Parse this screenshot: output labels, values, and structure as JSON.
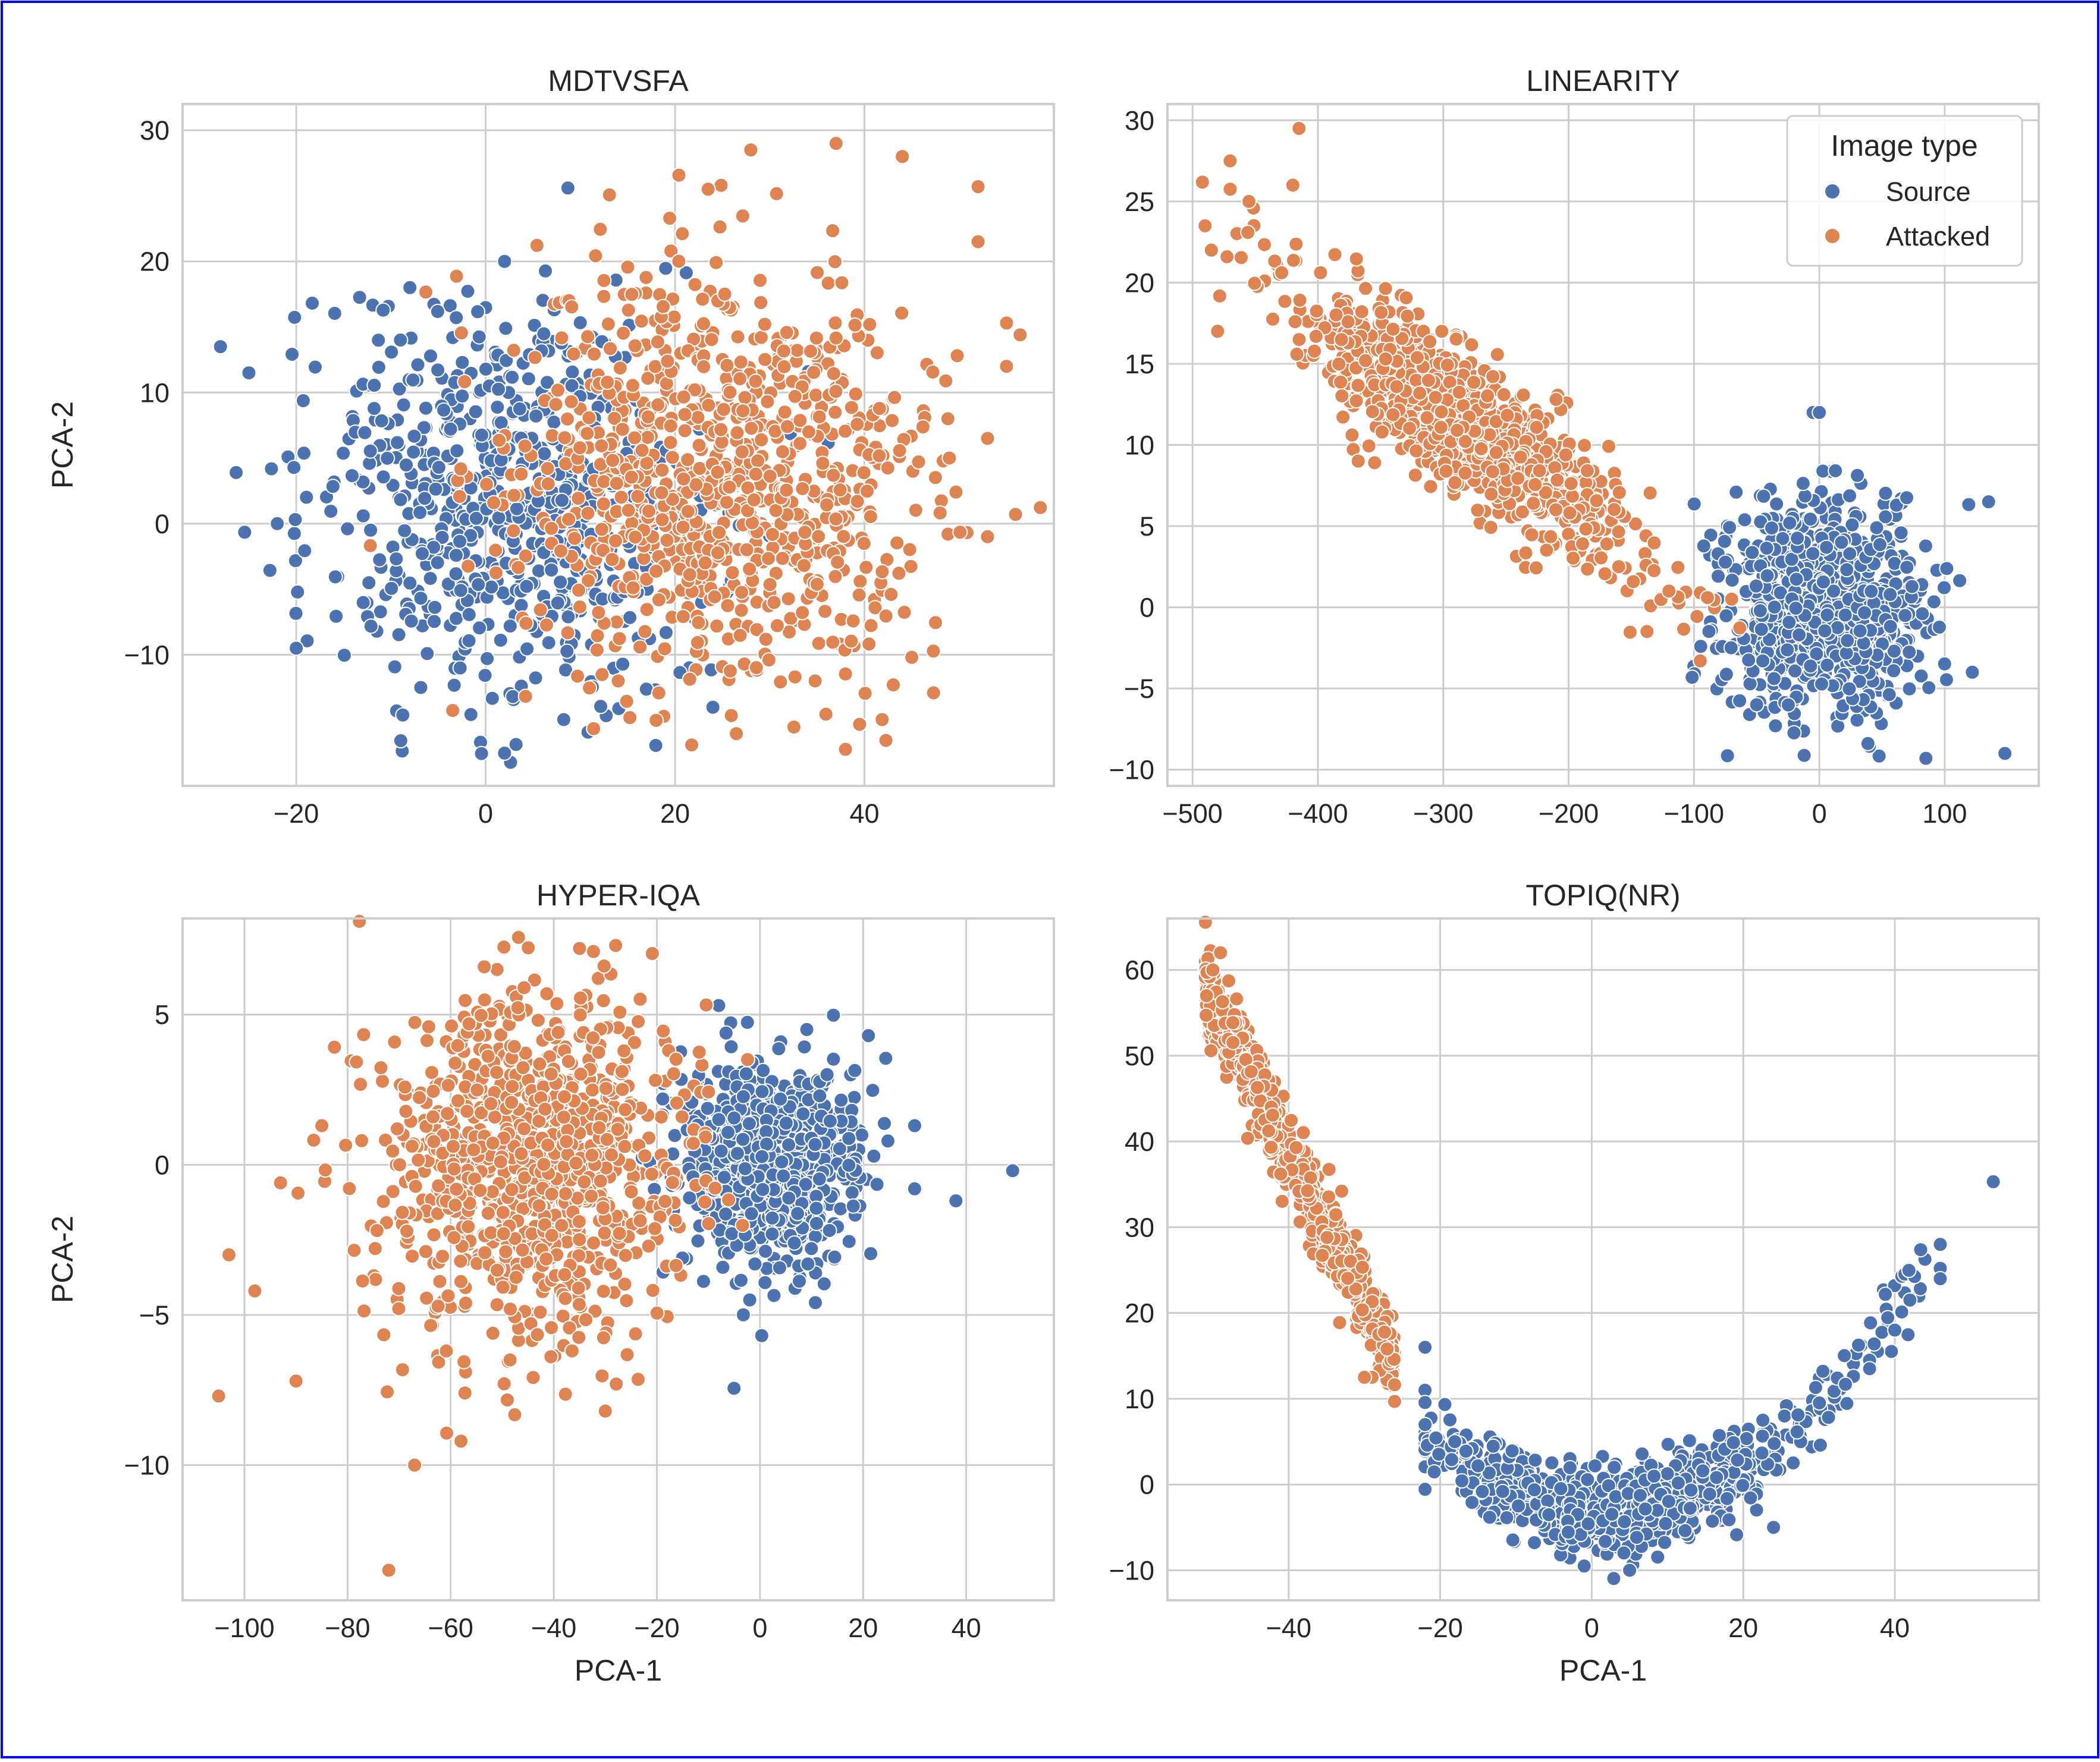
{
  "figure": {
    "xlabel": "PCA-1",
    "ylabel": "PCA-2"
  },
  "legend": {
    "title": "Image type",
    "entries": [
      {
        "label": "Source",
        "color": "#4c72b0"
      },
      {
        "label": "Attacked",
        "color": "#dd8452"
      }
    ],
    "placement": "top-right of LINEARITY panel"
  },
  "colors": {
    "source": "#4c72b0",
    "attacked": "#dd8452",
    "grid": "#cccccc",
    "frame": "#cccccc",
    "border": "#0000ff"
  },
  "chart_data": [
    {
      "type": "scatter",
      "title": "MDTVSFA",
      "xlabel": "",
      "ylabel": "PCA-2",
      "xlim": [
        -32,
        60
      ],
      "ylim": [
        -20,
        32
      ],
      "xticks": [
        -20,
        0,
        20,
        40
      ],
      "yticks": [
        -10,
        0,
        10,
        20,
        30
      ],
      "grid": true,
      "series": [
        {
          "name": "Source",
          "cluster": {
            "center": [
              2,
              2
            ],
            "spread": [
              10,
              7.5
            ],
            "count": 700,
            "angle": 0
          },
          "points": [
            [
              -28,
              13.5
            ],
            [
              -25,
              11.5
            ],
            [
              -22,
              0
            ],
            [
              -20,
              -9.5
            ],
            [
              2,
              20
            ],
            [
              2,
              -17.5
            ],
            [
              24,
              -14
            ],
            [
              -8,
              18
            ]
          ]
        },
        {
          "name": "Attacked",
          "cluster": {
            "center": [
              24,
              3.5
            ],
            "spread": [
              11,
              8
            ],
            "count": 900,
            "angle": 0
          },
          "points": [
            [
              28,
              28.5
            ],
            [
              37,
              29
            ],
            [
              44,
              28
            ],
            [
              52,
              25.7
            ],
            [
              52,
              21.5
            ],
            [
              55,
              15.3
            ],
            [
              55,
              12
            ],
            [
              53,
              6.5
            ],
            [
              53,
              -1
            ],
            [
              45,
              -10.2
            ],
            [
              18,
              -15
            ],
            [
              14,
              -12
            ]
          ]
        }
      ]
    },
    {
      "type": "scatter",
      "title": "LINEARITY",
      "xlabel": "",
      "ylabel": "",
      "xlim": [
        -520,
        175
      ],
      "ylim": [
        -11,
        31
      ],
      "xticks": [
        -500,
        -400,
        -300,
        -200,
        -100,
        0,
        100
      ],
      "yticks": [
        -10,
        -5,
        0,
        5,
        10,
        15,
        20,
        25,
        30
      ],
      "grid": true,
      "series": [
        {
          "name": "Source",
          "cluster": {
            "center": [
              0,
              0
            ],
            "spread": [
              40,
              3.2
            ],
            "count": 900,
            "angle": 0
          },
          "points": [
            [
              -5,
              12
            ],
            [
              135,
              6.5
            ],
            [
              122,
              -4
            ],
            [
              148,
              -9
            ],
            [
              85,
              -9.3
            ],
            [
              -35,
              -7.3
            ],
            [
              -50,
              -6
            ],
            [
              0,
              12
            ]
          ]
        },
        {
          "name": "Attacked",
          "cluster": {
            "center": [
              -280,
              11
            ],
            "spread": [
              70,
              2.4
            ],
            "count": 1000,
            "angle": 1
          },
          "points": [
            [
              -490,
              23.5
            ],
            [
              -485,
              22
            ],
            [
              -470,
              27.5
            ],
            [
              -455,
              25
            ],
            [
              -415,
              29.5
            ],
            [
              -420,
              26
            ],
            [
              -480,
              17
            ],
            [
              -160,
              2.5
            ],
            [
              -95,
              -3.3
            ],
            [
              -70,
              0.5
            ],
            [
              -120,
              1
            ]
          ]
        }
      ]
    },
    {
      "type": "scatter",
      "title": "HYPER-IQA",
      "xlabel": "PCA-1",
      "ylabel": "PCA-2",
      "xlim": [
        -112,
        57
      ],
      "ylim": [
        -14.5,
        8.2
      ],
      "xticks": [
        -100,
        -80,
        -60,
        -40,
        -20,
        0,
        20,
        40
      ],
      "yticks": [
        -10,
        -5,
        0,
        5
      ],
      "grid": true,
      "series": [
        {
          "name": "Source",
          "cluster": {
            "center": [
              2,
              0
            ],
            "spread": [
              8,
              1.6
            ],
            "count": 900,
            "angle": 0
          },
          "points": [
            [
              49,
              -0.2
            ],
            [
              38,
              -1.2
            ],
            [
              30,
              -0.8
            ],
            [
              30,
              1.3
            ],
            [
              -8,
              5.3
            ],
            [
              -2,
              -4.5
            ],
            [
              13,
              3
            ]
          ]
        },
        {
          "name": "Attacked",
          "cluster": {
            "center": [
              -45,
              0
            ],
            "spread": [
              14,
              2.8
            ],
            "count": 1000,
            "angle": 0
          },
          "points": [
            [
              -105,
              -7.7
            ],
            [
              -103,
              -3
            ],
            [
              -98,
              -4.2
            ],
            [
              -93,
              -0.6
            ],
            [
              -90,
              -7.2
            ],
            [
              -85,
              1.3
            ],
            [
              -72,
              -13.5
            ],
            [
              -67,
              -10
            ],
            [
              -58,
              -9.2
            ],
            [
              -30,
              -8.2
            ],
            [
              -28,
              7.3
            ],
            [
              -35,
              7.2
            ]
          ]
        }
      ]
    },
    {
      "type": "scatter",
      "title": "TOPIQ(NR)",
      "xlabel": "PCA-1",
      "ylabel": "",
      "xlim": [
        -56,
        59
      ],
      "ylim": [
        -13.5,
        66
      ],
      "xticks": [
        -40,
        -20,
        0,
        20,
        40
      ],
      "yticks": [
        -10,
        0,
        10,
        20,
        30,
        40,
        50,
        60
      ],
      "grid": true,
      "series": [
        {
          "name": "Source",
          "curve": {
            "a": 0.016,
            "h": 2,
            "k": -3,
            "xrange": [
              -22,
              44
            ],
            "noise": 2.3
          },
          "count": 1000,
          "points": [
            [
              53,
              35.3
            ],
            [
              46,
              28
            ],
            [
              46,
              25.2
            ],
            [
              46,
              24
            ],
            [
              42,
              21.5
            ],
            [
              40,
              18
            ],
            [
              -22,
              16
            ],
            [
              24,
              -5
            ],
            [
              5,
              -10
            ],
            [
              -1,
              -9.5
            ]
          ]
        },
        {
          "name": "Attacked",
          "curve": {
            "a": 0.5,
            "h": -28,
            "k": 20,
            "xrange": [
              -51,
              -26
            ],
            "noise": 1.5
          },
          "count": 800,
          "points": [
            [
              -49,
              62
            ],
            [
              -50,
              60
            ],
            [
              -27,
              15.8
            ],
            [
              -29,
              12.5
            ],
            [
              -30,
              12.5
            ],
            [
              -33,
              34.2
            ]
          ]
        }
      ]
    }
  ]
}
